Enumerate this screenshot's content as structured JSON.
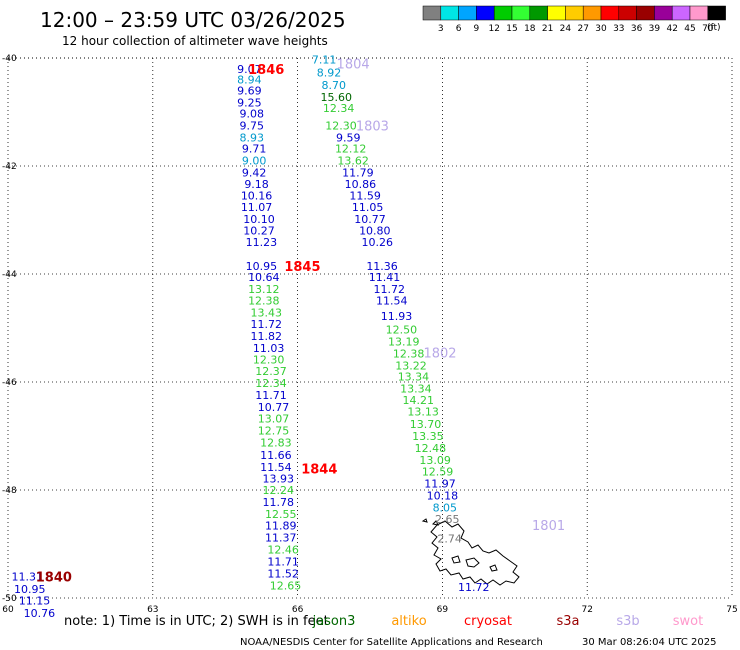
{
  "header": {
    "title": "12:00 – 23:59 UTC 03/26/2025",
    "subtitle": "12 hour collection of altimeter wave heights"
  },
  "colorbar": {
    "colors": [
      "#808080",
      "#00e5e5",
      "#00a5ff",
      "#0000ff",
      "#00cc00",
      "#33ff33",
      "#009900",
      "#ffff00",
      "#ffcc00",
      "#ff9900",
      "#ff0000",
      "#cc0000",
      "#990000",
      "#990099",
      "#cc66ff",
      "#ff99cc",
      "#000000"
    ],
    "labels": [
      "3",
      "6",
      "9",
      "12",
      "15",
      "18",
      "21",
      "24",
      "27",
      "30",
      "33",
      "36",
      "39",
      "42",
      "45",
      "70"
    ],
    "unit": "(ft)"
  },
  "axes": {
    "x_ticks": [
      {
        "v": 60,
        "label": "60"
      },
      {
        "v": 63,
        "label": "63"
      },
      {
        "v": 66,
        "label": "66"
      },
      {
        "v": 69,
        "label": "69"
      },
      {
        "v": 72,
        "label": "72"
      },
      {
        "v": 75,
        "label": "75"
      }
    ],
    "y_ticks": [
      {
        "v": -40,
        "label": "-40"
      },
      {
        "v": -42,
        "label": "-42"
      },
      {
        "v": -44,
        "label": "-44"
      },
      {
        "v": -46,
        "label": "-46"
      },
      {
        "v": -48,
        "label": "-48"
      },
      {
        "v": -50,
        "label": "-50"
      }
    ],
    "xlim": [
      60,
      75
    ],
    "ylim": [
      -50,
      -40
    ],
    "grid": true
  },
  "palette": {
    "blue": "#0000cc",
    "cyan": "#0099cc",
    "green": "#33cc33",
    "darkgreen": "#006600",
    "red": "#ff0000",
    "darkred": "#990000",
    "lavender": "#b8a8e8",
    "gray": "#777777",
    "orange": "#ff9900",
    "pink": "#ff99cc"
  },
  "time_labels": [
    {
      "text": "1846",
      "lon": 65.35,
      "lat": -40.2,
      "color": "red"
    },
    {
      "text": "1804",
      "lon": 67.15,
      "lat": -40.1,
      "color": "lavender"
    },
    {
      "text": "1803",
      "lon": 67.55,
      "lat": -41.25,
      "color": "lavender"
    },
    {
      "text": "1845",
      "lon": 66.1,
      "lat": -43.85,
      "color": "red"
    },
    {
      "text": "1802",
      "lon": 68.95,
      "lat": -45.45,
      "color": "lavender"
    },
    {
      "text": "1844",
      "lon": 66.45,
      "lat": -47.6,
      "color": "red"
    },
    {
      "text": "1801",
      "lon": 71.2,
      "lat": -48.65,
      "color": "lavender"
    },
    {
      "text": "1840",
      "lon": 60.95,
      "lat": -49.6,
      "color": "darkred"
    }
  ],
  "measurements": [
    {
      "text": "9.07",
      "lon": 65.0,
      "lat": -40.2,
      "color": "blue"
    },
    {
      "text": "8.94",
      "lon": 65.0,
      "lat": -40.4,
      "color": "cyan"
    },
    {
      "text": "9.69",
      "lon": 65.0,
      "lat": -40.6,
      "color": "blue"
    },
    {
      "text": "9.25",
      "lon": 65.0,
      "lat": -40.82,
      "color": "blue"
    },
    {
      "text": "9.08",
      "lon": 65.05,
      "lat": -41.03,
      "color": "blue"
    },
    {
      "text": "9.75",
      "lon": 65.05,
      "lat": -41.25,
      "color": "blue"
    },
    {
      "text": "8.93",
      "lon": 65.05,
      "lat": -41.47,
      "color": "cyan"
    },
    {
      "text": "9.71",
      "lon": 65.1,
      "lat": -41.68,
      "color": "blue"
    },
    {
      "text": "9.00",
      "lon": 65.1,
      "lat": -41.9,
      "color": "cyan"
    },
    {
      "text": "9.42",
      "lon": 65.1,
      "lat": -42.12,
      "color": "blue"
    },
    {
      "text": "9.18",
      "lon": 65.15,
      "lat": -42.33,
      "color": "blue"
    },
    {
      "text": "10.16",
      "lon": 65.15,
      "lat": -42.55,
      "color": "blue"
    },
    {
      "text": "11.07",
      "lon": 65.15,
      "lat": -42.76,
      "color": "blue"
    },
    {
      "text": "10.10",
      "lon": 65.2,
      "lat": -42.98,
      "color": "blue"
    },
    {
      "text": "10.27",
      "lon": 65.2,
      "lat": -43.19,
      "color": "blue"
    },
    {
      "text": "11.23",
      "lon": 65.25,
      "lat": -43.41,
      "color": "blue"
    },
    {
      "text": "10.95",
      "lon": 65.25,
      "lat": -43.85,
      "color": "blue"
    },
    {
      "text": "10.64",
      "lon": 65.3,
      "lat": -44.06,
      "color": "blue"
    },
    {
      "text": "13.12",
      "lon": 65.3,
      "lat": -44.28,
      "color": "green"
    },
    {
      "text": "12.38",
      "lon": 65.3,
      "lat": -44.49,
      "color": "green"
    },
    {
      "text": "13.43",
      "lon": 65.35,
      "lat": -44.71,
      "color": "green"
    },
    {
      "text": "11.72",
      "lon": 65.35,
      "lat": -44.93,
      "color": "blue"
    },
    {
      "text": "11.82",
      "lon": 65.35,
      "lat": -45.15,
      "color": "blue"
    },
    {
      "text": "11.03",
      "lon": 65.4,
      "lat": -45.37,
      "color": "blue"
    },
    {
      "text": "12.30",
      "lon": 65.4,
      "lat": -45.58,
      "color": "green"
    },
    {
      "text": "12.37",
      "lon": 65.45,
      "lat": -45.8,
      "color": "green"
    },
    {
      "text": "12.34",
      "lon": 65.45,
      "lat": -46.02,
      "color": "green"
    },
    {
      "text": "11.71",
      "lon": 65.45,
      "lat": -46.24,
      "color": "blue"
    },
    {
      "text": "10.77",
      "lon": 65.5,
      "lat": -46.46,
      "color": "blue"
    },
    {
      "text": "13.07",
      "lon": 65.5,
      "lat": -46.68,
      "color": "green"
    },
    {
      "text": "12.75",
      "lon": 65.5,
      "lat": -46.9,
      "color": "green"
    },
    {
      "text": "12.83",
      "lon": 65.55,
      "lat": -47.12,
      "color": "green"
    },
    {
      "text": "11.66",
      "lon": 65.55,
      "lat": -47.35,
      "color": "blue"
    },
    {
      "text": "11.54",
      "lon": 65.55,
      "lat": -47.57,
      "color": "blue"
    },
    {
      "text": "13.93",
      "lon": 65.6,
      "lat": -47.79,
      "color": "blue"
    },
    {
      "text": "12.24",
      "lon": 65.6,
      "lat": -48.0,
      "color": "green"
    },
    {
      "text": "11.78",
      "lon": 65.6,
      "lat": -48.22,
      "color": "blue"
    },
    {
      "text": "12.55",
      "lon": 65.65,
      "lat": -48.44,
      "color": "green"
    },
    {
      "text": "11.89",
      "lon": 65.65,
      "lat": -48.66,
      "color": "blue"
    },
    {
      "text": "11.37",
      "lon": 65.65,
      "lat": -48.88,
      "color": "blue"
    },
    {
      "text": "12.46",
      "lon": 65.7,
      "lat": -49.1,
      "color": "green"
    },
    {
      "text": "11.71",
      "lon": 65.7,
      "lat": -49.32,
      "color": "blue"
    },
    {
      "text": "11.52",
      "lon": 65.7,
      "lat": -49.55,
      "color": "blue"
    },
    {
      "text": "12.65",
      "lon": 65.75,
      "lat": -49.77,
      "color": "green"
    },
    {
      "text": "7.11",
      "lon": 66.55,
      "lat": -40.03,
      "color": "cyan"
    },
    {
      "text": "8.92",
      "lon": 66.65,
      "lat": -40.27,
      "color": "cyan"
    },
    {
      "text": "8.70",
      "lon": 66.75,
      "lat": -40.5,
      "color": "cyan"
    },
    {
      "text": "15.60",
      "lon": 66.8,
      "lat": -40.72,
      "color": "darkgreen"
    },
    {
      "text": "12.34",
      "lon": 66.85,
      "lat": -40.93,
      "color": "green"
    },
    {
      "text": "12.30",
      "lon": 66.9,
      "lat": -41.25,
      "color": "green"
    },
    {
      "text": "9.59",
      "lon": 67.05,
      "lat": -41.47,
      "color": "blue"
    },
    {
      "text": "12.12",
      "lon": 67.1,
      "lat": -41.68,
      "color": "green"
    },
    {
      "text": "13.62",
      "lon": 67.15,
      "lat": -41.9,
      "color": "green"
    },
    {
      "text": "11.79",
      "lon": 67.25,
      "lat": -42.12,
      "color": "blue"
    },
    {
      "text": "10.86",
      "lon": 67.3,
      "lat": -42.33,
      "color": "blue"
    },
    {
      "text": "11.59",
      "lon": 67.4,
      "lat": -42.55,
      "color": "blue"
    },
    {
      "text": "11.05",
      "lon": 67.45,
      "lat": -42.76,
      "color": "blue"
    },
    {
      "text": "10.77",
      "lon": 67.5,
      "lat": -42.98,
      "color": "blue"
    },
    {
      "text": "10.80",
      "lon": 67.6,
      "lat": -43.19,
      "color": "blue"
    },
    {
      "text": "10.26",
      "lon": 67.65,
      "lat": -43.41,
      "color": "blue"
    },
    {
      "text": "11.36",
      "lon": 67.75,
      "lat": -43.85,
      "color": "blue"
    },
    {
      "text": "11.41",
      "lon": 67.8,
      "lat": -44.06,
      "color": "blue"
    },
    {
      "text": "11.72",
      "lon": 67.9,
      "lat": -44.28,
      "color": "blue"
    },
    {
      "text": "11.54",
      "lon": 67.95,
      "lat": -44.49,
      "color": "blue"
    },
    {
      "text": "11.93",
      "lon": 68.05,
      "lat": -44.78,
      "color": "blue"
    },
    {
      "text": "12.50",
      "lon": 68.15,
      "lat": -45.03,
      "color": "green"
    },
    {
      "text": "13.19",
      "lon": 68.2,
      "lat": -45.25,
      "color": "green"
    },
    {
      "text": "12.38",
      "lon": 68.3,
      "lat": -45.47,
      "color": "green"
    },
    {
      "text": "13.22",
      "lon": 68.35,
      "lat": -45.69,
      "color": "green"
    },
    {
      "text": "13.34",
      "lon": 68.4,
      "lat": -45.9,
      "color": "green"
    },
    {
      "text": "13.34",
      "lon": 68.45,
      "lat": -46.12,
      "color": "green"
    },
    {
      "text": "14.21",
      "lon": 68.5,
      "lat": -46.33,
      "color": "green"
    },
    {
      "text": "13.13",
      "lon": 68.6,
      "lat": -46.55,
      "color": "green"
    },
    {
      "text": "13.70",
      "lon": 68.65,
      "lat": -46.78,
      "color": "green"
    },
    {
      "text": "13.35",
      "lon": 68.7,
      "lat": -47.0,
      "color": "green"
    },
    {
      "text": "12.48",
      "lon": 68.75,
      "lat": -47.22,
      "color": "green"
    },
    {
      "text": "13.09",
      "lon": 68.85,
      "lat": -47.44,
      "color": "green"
    },
    {
      "text": "12.59",
      "lon": 68.9,
      "lat": -47.66,
      "color": "green"
    },
    {
      "text": "11.97",
      "lon": 68.95,
      "lat": -47.88,
      "color": "blue"
    },
    {
      "text": "10.18",
      "lon": 69.0,
      "lat": -48.1,
      "color": "blue"
    },
    {
      "text": "8.05",
      "lon": 69.05,
      "lat": -48.32,
      "color": "cyan"
    },
    {
      "text": "2.65",
      "lon": 69.1,
      "lat": -48.54,
      "color": "gray"
    },
    {
      "text": "2.74",
      "lon": 69.15,
      "lat": -48.9,
      "color": "gray"
    },
    {
      "text": "11.72",
      "lon": 69.65,
      "lat": -49.8,
      "color": "blue"
    },
    {
      "text": "11.31",
      "lon": 60.4,
      "lat": -49.6,
      "color": "blue"
    },
    {
      "text": "10.95",
      "lon": 60.45,
      "lat": -49.83,
      "color": "blue"
    },
    {
      "text": "11.15",
      "lon": 60.55,
      "lat": -50.05,
      "color": "blue"
    },
    {
      "text": "10.76",
      "lon": 60.65,
      "lat": -50.28,
      "color": "blue"
    }
  ],
  "coast_label_note": "",
  "footer": {
    "note": "note:  1) Time is in UTC;  2) SWH is in feet",
    "legend": [
      {
        "text": "jason3",
        "color": "darkgreen"
      },
      {
        "text": "altiko",
        "color": "orange"
      },
      {
        "text": "cryosat",
        "color": "red"
      },
      {
        "text": "s3a",
        "color": "darkred"
      },
      {
        "text": "s3b",
        "color": "lavender"
      },
      {
        "text": "swot",
        "color": "pink"
      }
    ],
    "credit": "NOAA/NESDIS Center for Satellite Applications and Research",
    "timestamp": "30 Mar 08:26:04 UTC 2025"
  }
}
